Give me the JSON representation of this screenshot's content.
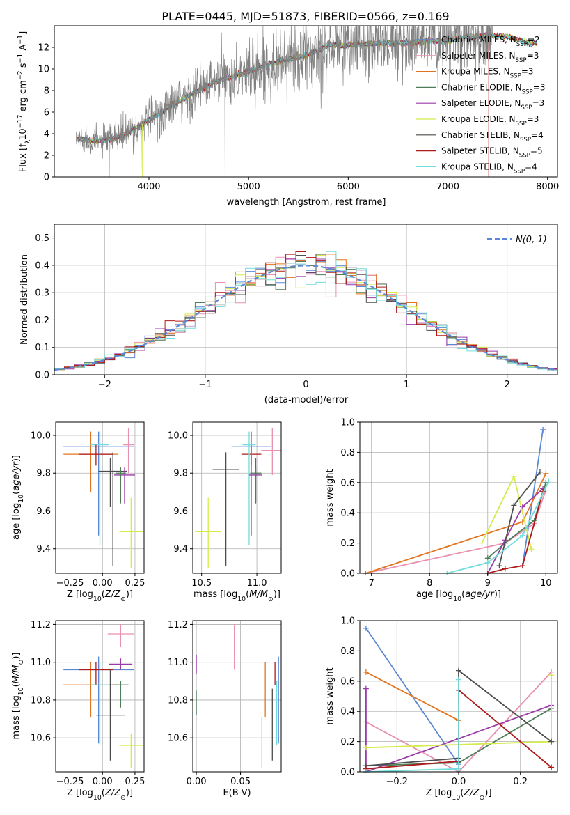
{
  "colors": {
    "chabrier_miles": "#5b88d4",
    "salpeter_miles": "#e98fb0",
    "kroupa_miles": "#e2741f",
    "chabrier_elodie": "#4f7d5a",
    "salpeter_elodie": "#9a3aa8",
    "kroupa_elodie": "#d4eb4a",
    "chabrier_stelib": "#4d4d4d",
    "salpeter_stelib": "#ae1a1a",
    "kroupa_stelib": "#72dcdc",
    "spectrum": "#808080",
    "gaussian": "#5b88d4",
    "grid": "#b0b0b0"
  },
  "chart_data": [
    {
      "id": "spectrum",
      "type": "line",
      "title": "PLATE=0445, MJD=51873, FIBERID=0566, z=0.169",
      "xlabel": "wavelength [Angstrom, rest frame]",
      "ylabel": "Flux [f_λ 10^-17 erg cm^-2 s^-1 A^-1]",
      "xlim": [
        3050,
        8100
      ],
      "ylim": [
        0,
        14
      ],
      "xticks": [
        "4000",
        "5000",
        "6000",
        "7000",
        "8000"
      ],
      "yticks": [
        "0",
        "2",
        "4",
        "6",
        "8",
        "10",
        "12"
      ],
      "grid": false,
      "legend_position": "right",
      "legend": [
        {
          "main": "Chabrier MILES, N",
          "sub": "SSP",
          "tail": "=2"
        },
        {
          "main": "Salpeter MILES, N",
          "sub": "SSP",
          "tail": "=3"
        },
        {
          "main": "Kroupa MILES, N",
          "sub": "SSP",
          "tail": "=3"
        },
        {
          "main": "Chabrier ELODIE, N",
          "sub": "SSP",
          "tail": "=3"
        },
        {
          "main": "Salpeter ELODIE, N",
          "sub": "SSP",
          "tail": "=3"
        },
        {
          "main": "Kroupa ELODIE, N",
          "sub": "SSP",
          "tail": "=3"
        },
        {
          "main": "Chabrier STELIB, N",
          "sub": "SSP",
          "tail": "=4"
        },
        {
          "main": "Salpeter STELIB, N",
          "sub": "SSP",
          "tail": "=5"
        },
        {
          "main": "Kroupa STELIB, N",
          "sub": "SSP",
          "tail": "=4"
        }
      ],
      "continuum": [
        [
          3270,
          3.5
        ],
        [
          3400,
          3.4
        ],
        [
          3550,
          3.3
        ],
        [
          3650,
          3.6
        ],
        [
          3800,
          4.1
        ],
        [
          3950,
          5.0
        ],
        [
          4100,
          5.8
        ],
        [
          4200,
          6.5
        ],
        [
          4300,
          7.0
        ],
        [
          4500,
          8.0
        ],
        [
          4700,
          8.9
        ],
        [
          4850,
          9.3
        ],
        [
          5000,
          9.8
        ],
        [
          5200,
          10.4
        ],
        [
          5400,
          10.9
        ],
        [
          5600,
          11.3
        ],
        [
          5800,
          12.2
        ],
        [
          6000,
          12.2
        ],
        [
          6200,
          12.3
        ],
        [
          6400,
          12.4
        ],
        [
          6600,
          12.4
        ],
        [
          6800,
          12.6
        ],
        [
          7000,
          12.6
        ],
        [
          7200,
          13.0
        ],
        [
          7400,
          13.1
        ],
        [
          7600,
          13.0
        ],
        [
          7800,
          12.4
        ]
      ],
      "model_range": [
        3270,
        7900
      ],
      "data_range": [
        3270,
        7450
      ]
    },
    {
      "id": "residuals",
      "type": "histogram",
      "xlabel": "(data-model)/error",
      "ylabel": "Normed distribution",
      "xlim": [
        -2.5,
        2.5
      ],
      "ylim": [
        0,
        0.55
      ],
      "xticks": [
        "−2",
        "−1",
        "0",
        "1",
        "2"
      ],
      "yticks": [
        "0.0",
        "0.1",
        "0.2",
        "0.3",
        "0.4",
        "0.5"
      ],
      "grid": true,
      "legend_position": "upper right",
      "gaussian_label": "N(0, 1)",
      "bin_width": 0.1
    },
    {
      "id": "age_vs_Z",
      "type": "scatter",
      "xlabel": "Z [log10(Z/Z⊙)]",
      "ylabel": "age  [log10(age/yr)]",
      "xlim": [
        -0.36,
        0.32
      ],
      "ylim": [
        9.27,
        10.07
      ],
      "xticks": [
        -0.25,
        0.0,
        0.25
      ],
      "xtick_labels": [
        "−0.25",
        "0.00",
        "0.25"
      ],
      "yticks": [
        9.4,
        9.6,
        9.8,
        10.0
      ],
      "ytick_labels": [
        "9.4",
        "9.6",
        "9.8",
        "10.0"
      ],
      "grid": true,
      "points": [
        {
          "series": "chabrier_miles",
          "x": -0.03,
          "xerr": 0.27,
          "y": 9.94,
          "yerr": [
            9.47,
            10.02
          ]
        },
        {
          "series": "kroupa_miles",
          "x": -0.09,
          "xerr": 0.21,
          "y": 9.9,
          "yerr": [
            9.7,
            10.02
          ]
        },
        {
          "series": "salpeter_miles",
          "x": 0.2,
          "xerr": 0.04,
          "y": 9.95,
          "yerr": [
            9.8,
            10.04
          ]
        },
        {
          "series": "kroupa_stelib",
          "x": -0.02,
          "xerr": 0.07,
          "y": 9.95,
          "yerr": [
            9.42,
            10.02
          ]
        },
        {
          "series": "salpeter_stelib",
          "x": -0.05,
          "xerr": 0.13,
          "y": 9.9,
          "yerr": [
            9.84,
            9.95
          ]
        },
        {
          "series": "chabrier_stelib",
          "x": 0.08,
          "xerr": 0.11,
          "y": 9.81,
          "yerr": [
            9.31,
            9.91
          ]
        },
        {
          "series": "salpeter_elodie",
          "x": 0.17,
          "xerr": 0.08,
          "y": 9.79,
          "yerr": [
            9.64,
            9.83
          ]
        },
        {
          "series": "chabrier_elodie",
          "x": 0.14,
          "xerr": 0.04,
          "y": 9.8,
          "yerr": [
            9.64,
            9.83
          ]
        },
        {
          "series": "kroupa_elodie",
          "x": 0.22,
          "xerr": 0.09,
          "y": 9.49,
          "yerr": [
            9.3,
            9.67
          ]
        },
        {
          "series": "chabrier_stelib",
          "x": 0.06,
          "xerr": 0.0,
          "y": 9.75,
          "yerr": [
            9.62,
            9.88
          ]
        }
      ]
    },
    {
      "id": "age_vs_mass",
      "type": "scatter",
      "xlabel": "mass [log10(M/M⊙)]",
      "ylabel": "",
      "xlim": [
        10.42,
        11.22
      ],
      "ylim": [
        9.27,
        10.07
      ],
      "xticks": [
        10.5,
        11.0
      ],
      "xtick_labels": [
        "10.5",
        "11.0"
      ],
      "yticks": [
        9.4,
        9.6,
        9.8,
        10.0
      ],
      "ytick_labels": [
        "9.4",
        "9.6",
        "9.8",
        "10.0"
      ],
      "grid": true,
      "points": [
        {
          "series": "kroupa_elodie",
          "x": 10.56,
          "xerr": 0.12,
          "y": 9.49,
          "yerr": [
            9.3,
            9.67
          ]
        },
        {
          "series": "chabrier_stelib",
          "x": 10.72,
          "xerr": 0.12,
          "y": 9.82,
          "yerr": [
            9.31,
            9.91
          ]
        },
        {
          "series": "salpeter_stelib",
          "x": 10.95,
          "xerr": 0.09,
          "y": 9.9,
          "yerr": [
            9.84,
            9.95
          ]
        },
        {
          "series": "chabrier_miles",
          "x": 10.95,
          "xerr": 0.18,
          "y": 9.94,
          "yerr": [
            9.47,
            10.02
          ]
        },
        {
          "series": "kroupa_stelib",
          "x": 10.93,
          "xerr": 0.06,
          "y": 9.95,
          "yerr": [
            9.42,
            10.02
          ]
        },
        {
          "series": "salpeter_elodie",
          "x": 10.99,
          "xerr": 0.06,
          "y": 9.79,
          "yerr": [
            9.64,
            9.88
          ]
        },
        {
          "series": "chabrier_elodie",
          "x": 10.99,
          "xerr": 0.05,
          "y": 9.8,
          "yerr": [
            9.65,
            9.83
          ]
        },
        {
          "series": "salpeter_miles",
          "x": 11.14,
          "xerr": 0.1,
          "y": 9.92,
          "yerr": [
            9.79,
            10.04
          ]
        }
      ]
    },
    {
      "id": "mass_weight_vs_age",
      "type": "line",
      "xlabel": "age  [log10(age/yr)]",
      "ylabel": "mass weight",
      "xlim": [
        6.8,
        10.2
      ],
      "ylim": [
        0,
        1
      ],
      "xticks": [
        7,
        8,
        9,
        10
      ],
      "xtick_labels": [
        "7",
        "8",
        "9",
        "10"
      ],
      "yticks": [
        0,
        0.2,
        0.4,
        0.6,
        0.8,
        1.0
      ],
      "ytick_labels": [
        "0.0",
        "0.2",
        "0.4",
        "0.6",
        "0.8",
        "1.0"
      ],
      "grid": true,
      "series": [
        {
          "name": "chabrier_miles",
          "x": [
            9.6,
            9.95
          ],
          "y": [
            0.05,
            0.95
          ]
        },
        {
          "name": "salpeter_miles",
          "x": [
            6.9,
            9.3,
            9.8,
            10.0
          ],
          "y": [
            0.0,
            0.2,
            0.33,
            0.55
          ]
        },
        {
          "name": "kroupa_miles",
          "x": [
            6.9,
            9.6,
            10.0
          ],
          "y": [
            0.0,
            0.34,
            0.66
          ]
        },
        {
          "name": "chabrier_elodie",
          "x": [
            9.0,
            9.3,
            9.8,
            10.0
          ],
          "y": [
            0.1,
            0.2,
            0.35,
            0.6
          ]
        },
        {
          "name": "salpeter_elodie",
          "x": [
            9.0,
            9.3,
            9.6,
            9.95
          ],
          "y": [
            0.0,
            0.22,
            0.44,
            0.56
          ]
        },
        {
          "name": "kroupa_elodie",
          "x": [
            8.9,
            9.45,
            9.75
          ],
          "y": [
            0.2,
            0.64,
            0.16
          ]
        },
        {
          "name": "chabrier_stelib",
          "x": [
            9.2,
            9.45,
            9.9
          ],
          "y": [
            0.05,
            0.45,
            0.67
          ]
        },
        {
          "name": "salpeter_stelib",
          "x": [
            9.0,
            9.3,
            9.6,
            9.95
          ],
          "y": [
            0.0,
            0.03,
            0.05,
            0.54
          ]
        },
        {
          "name": "kroupa_stelib",
          "x": [
            8.3,
            9.0,
            9.6,
            10.05
          ],
          "y": [
            0.0,
            0.07,
            0.25,
            0.61
          ]
        }
      ]
    },
    {
      "id": "mass_vs_Z",
      "type": "scatter",
      "xlabel": "Z [log10(Z/Z⊙)]",
      "ylabel": "mass [log10(M/M⊙)]",
      "xlim": [
        -0.36,
        0.32
      ],
      "ylim": [
        10.42,
        11.22
      ],
      "xticks": [
        -0.25,
        0.0,
        0.25
      ],
      "xtick_labels": [
        "−0.25",
        "0.00",
        "0.25"
      ],
      "yticks": [
        10.6,
        10.8,
        11.0,
        11.2
      ],
      "ytick_labels": [
        "10.6",
        "10.8",
        "11.0",
        "11.2"
      ],
      "grid": true,
      "points": [
        {
          "series": "chabrier_miles",
          "x": -0.03,
          "xerr": 0.27,
          "y": 10.96,
          "yerr": [
            10.57,
            11.03
          ]
        },
        {
          "series": "kroupa_miles",
          "x": -0.09,
          "xerr": 0.21,
          "y": 10.88,
          "yerr": [
            10.71,
            11.0
          ]
        },
        {
          "series": "salpeter_stelib",
          "x": -0.05,
          "xerr": 0.13,
          "y": 10.96,
          "yerr": [
            10.88,
            11.0
          ]
        },
        {
          "series": "kroupa_stelib",
          "x": -0.02,
          "xerr": 0.07,
          "y": 10.88,
          "yerr": [
            10.56,
            11.0
          ]
        },
        {
          "series": "chabrier_stelib",
          "x": 0.06,
          "xerr": 0.11,
          "y": 10.72,
          "yerr": [
            10.48,
            10.96
          ]
        },
        {
          "series": "salpeter_miles",
          "x": 0.14,
          "xerr": 0.1,
          "y": 11.15,
          "yerr": [
            11.08,
            11.2
          ]
        },
        {
          "series": "salpeter_elodie",
          "x": 0.14,
          "xerr": 0.09,
          "y": 10.99,
          "yerr": [
            10.96,
            11.02
          ]
        },
        {
          "series": "chabrier_elodie",
          "x": 0.14,
          "xerr": 0.06,
          "y": 10.88,
          "yerr": [
            10.76,
            10.9
          ]
        },
        {
          "series": "kroupa_elodie",
          "x": 0.22,
          "xerr": 0.09,
          "y": 10.56,
          "yerr": [
            10.44,
            10.62
          ]
        }
      ]
    },
    {
      "id": "mass_vs_ebv",
      "type": "scatter",
      "xlabel": "E(B-V)",
      "ylabel": "",
      "xlim": [
        -0.004,
        0.096
      ],
      "ylim": [
        10.42,
        11.22
      ],
      "xticks": [
        0.0,
        0.05
      ],
      "xtick_labels": [
        "0.00",
        "0.05"
      ],
      "yticks": [
        10.6,
        10.8,
        11.0,
        11.2
      ],
      "ytick_labels": [
        "10.6",
        "10.8",
        "11.0",
        "11.2"
      ],
      "grid": true,
      "points": [
        {
          "series": "salpeter_elodie",
          "x": 0.0,
          "xerr": 0.0,
          "y": 10.99,
          "yerr": [
            10.94,
            11.04
          ]
        },
        {
          "series": "chabrier_elodie",
          "x": 0.0,
          "xerr": 0.0,
          "y": 10.76,
          "yerr": [
            10.72,
            10.85
          ]
        },
        {
          "series": "salpeter_miles",
          "x": 0.043,
          "xerr": 0.0,
          "y": 11.08,
          "yerr": [
            10.96,
            11.2
          ]
        },
        {
          "series": "kroupa_elodie",
          "x": 0.074,
          "xerr": 0.0,
          "y": 10.6,
          "yerr": [
            10.44,
            10.71
          ]
        },
        {
          "series": "kroupa_miles",
          "x": 0.078,
          "xerr": 0.0,
          "y": 10.88,
          "yerr": [
            10.71,
            11.0
          ]
        },
        {
          "series": "chabrier_stelib",
          "x": 0.086,
          "xerr": 0.0,
          "y": 10.72,
          "yerr": [
            10.48,
            10.86
          ]
        },
        {
          "series": "salpeter_stelib",
          "x": 0.089,
          "xerr": 0.0,
          "y": 10.96,
          "yerr": [
            10.88,
            11.0
          ]
        },
        {
          "series": "kroupa_stelib",
          "x": 0.091,
          "xerr": 0.0,
          "y": 10.8,
          "yerr": [
            10.56,
            10.9
          ]
        },
        {
          "series": "chabrier_miles",
          "x": 0.093,
          "xerr": 0.0,
          "y": 10.88,
          "yerr": [
            10.57,
            11.03
          ]
        }
      ]
    },
    {
      "id": "mass_weight_vs_Z",
      "type": "line",
      "xlabel": "Z [log10(Z/Z⊙)]",
      "ylabel": "mass weight",
      "xlim": [
        -0.32,
        0.32
      ],
      "ylim": [
        0,
        1
      ],
      "xticks": [
        -0.2,
        0.0,
        0.2
      ],
      "xtick_labels": [
        "−0.2",
        "0.0",
        "0.2"
      ],
      "yticks": [
        0,
        0.2,
        0.4,
        0.6,
        0.8,
        1.0
      ],
      "ytick_labels": [
        "0.0",
        "0.2",
        "0.4",
        "0.6",
        "0.8",
        "1.0"
      ],
      "grid": true,
      "series": [
        {
          "name": "chabrier_miles",
          "x": [
            -0.3,
            0.0
          ],
          "y": [
            0.95,
            0.05
          ]
        },
        {
          "name": "salpeter_miles",
          "x": [
            -0.3,
            0.0,
            0.3
          ],
          "y": [
            0.33,
            0.0,
            0.66
          ]
        },
        {
          "name": "kroupa_miles",
          "x": [
            -0.3,
            0.0
          ],
          "y": [
            0.66,
            0.34
          ]
        },
        {
          "name": "chabrier_elodie",
          "x": [
            -0.3,
            0.0,
            0.3
          ],
          "y": [
            0.04,
            0.06,
            0.42
          ]
        },
        {
          "name": "salpeter_elodie",
          "x": [
            -0.3,
            -0.3,
            0.0,
            0.3
          ],
          "y": [
            0.55,
            0.0,
            0.22,
            0.44
          ]
        },
        {
          "name": "kroupa_elodie",
          "x": [
            -0.3,
            0.3,
            0.3
          ],
          "y": [
            0.16,
            0.2,
            0.64
          ]
        },
        {
          "name": "chabrier_stelib",
          "x": [
            -0.3,
            0.0,
            0.0,
            0.3
          ],
          "y": [
            0.04,
            0.09,
            0.67,
            0.2
          ]
        },
        {
          "name": "salpeter_stelib",
          "x": [
            -0.3,
            0.0,
            0.0,
            0.3
          ],
          "y": [
            0.02,
            0.07,
            0.54,
            0.03
          ]
        },
        {
          "name": "kroupa_stelib",
          "x": [
            -0.3,
            0.0,
            0.0
          ],
          "y": [
            0.0,
            0.02,
            0.61
          ]
        }
      ]
    }
  ]
}
